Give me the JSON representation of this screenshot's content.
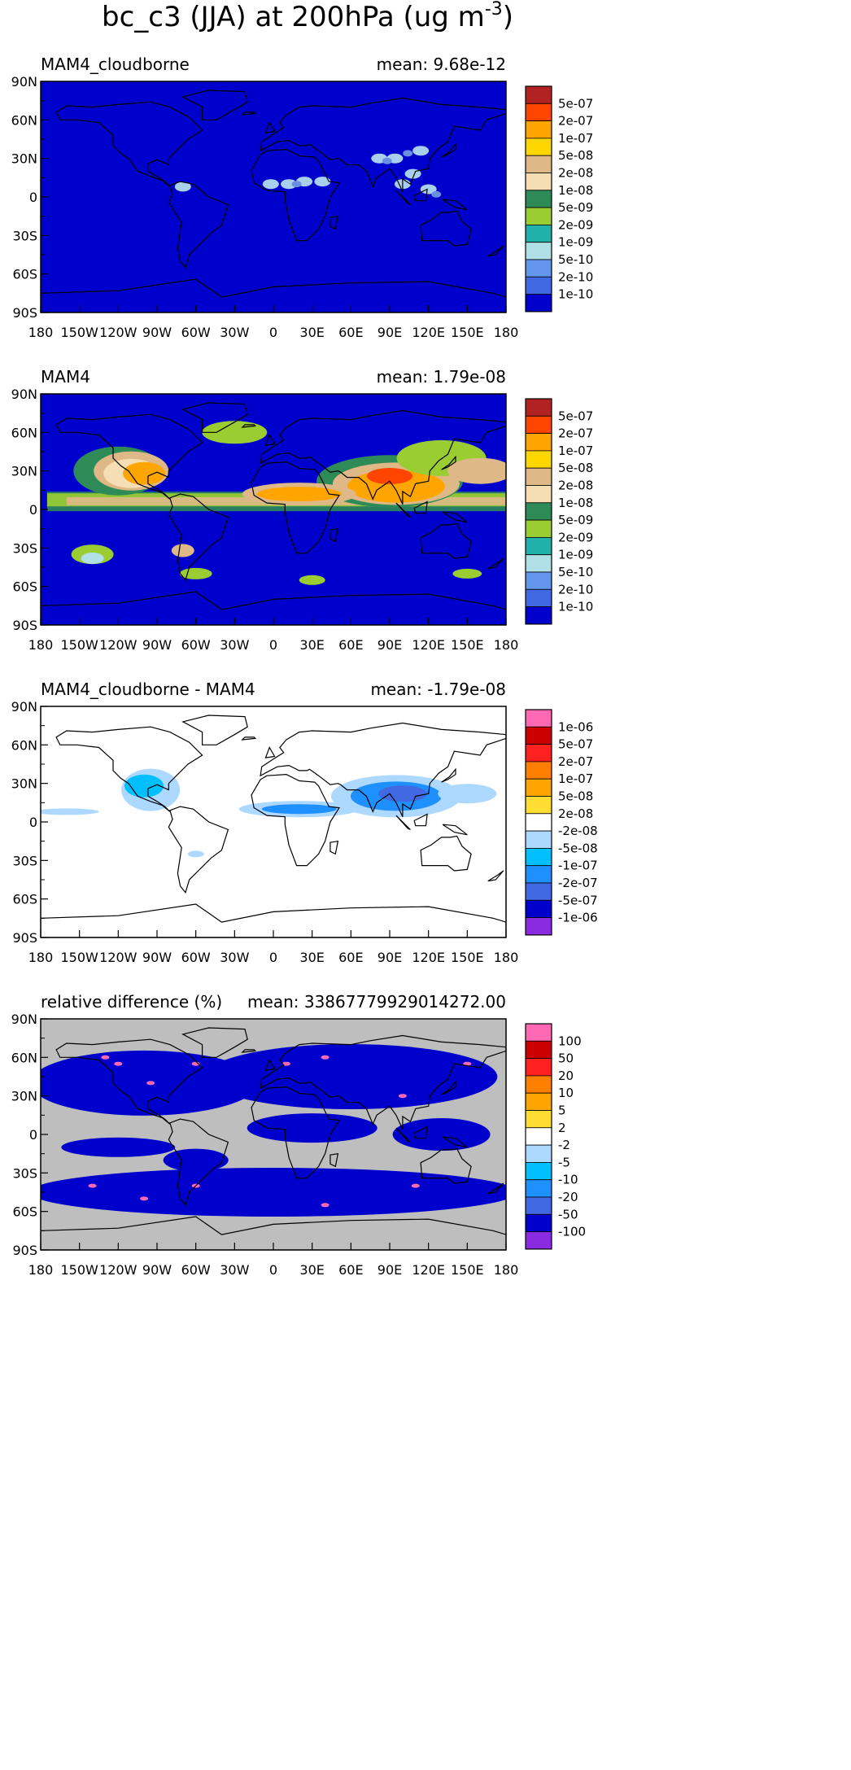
{
  "main_title": {
    "text": "bc_c3 (JJA) at 200hPa (ug m",
    "sup": "-3",
    "close": ")"
  },
  "x_ticks": [
    "180",
    "150W",
    "120W",
    "90W",
    "60W",
    "30W",
    "0",
    "30E",
    "60E",
    "90E",
    "120E",
    "150E",
    "180"
  ],
  "y_ticks": [
    "90N",
    "60N",
    "30N",
    "0",
    "30S",
    "60S",
    "90S"
  ],
  "panels": [
    {
      "left_title": "MAM4_cloudborne",
      "right_title": "mean: 9.68e-12",
      "colorbar": {
        "labels": [
          "5e-07",
          "2e-07",
          "1e-07",
          "5e-08",
          "2e-08",
          "1e-08",
          "5e-09",
          "2e-09",
          "1e-09",
          "5e-10",
          "2e-10",
          "1e-10"
        ],
        "colors": [
          "#b22222",
          "#ff4500",
          "#ffa500",
          "#ffd700",
          "#deb887",
          "#f5deb3",
          "#2e8b57",
          "#9acd32",
          "#20b2aa",
          "#b0e0e6",
          "#6495ed",
          "#4169e1",
          "#0000cd"
        ]
      }
    },
    {
      "left_title": "MAM4",
      "right_title": "mean: 1.79e-08",
      "colorbar": {
        "labels": [
          "5e-07",
          "2e-07",
          "1e-07",
          "5e-08",
          "2e-08",
          "1e-08",
          "5e-09",
          "2e-09",
          "1e-09",
          "5e-10",
          "2e-10",
          "1e-10"
        ],
        "colors": [
          "#b22222",
          "#ff4500",
          "#ffa500",
          "#ffd700",
          "#deb887",
          "#f5deb3",
          "#2e8b57",
          "#9acd32",
          "#20b2aa",
          "#b0e0e6",
          "#6495ed",
          "#4169e1",
          "#0000cd"
        ]
      }
    },
    {
      "left_title": "MAM4_cloudborne - MAM4",
      "right_title": "mean: -1.79e-08",
      "colorbar": {
        "labels": [
          "1e-06",
          "5e-07",
          "2e-07",
          "1e-07",
          "5e-08",
          "2e-08",
          "-2e-08",
          "-5e-08",
          "-1e-07",
          "-2e-07",
          "-5e-07",
          "-1e-06"
        ],
        "colors": [
          "#ff69b4",
          "#cc0000",
          "#ff2020",
          "#ff7f00",
          "#ffa500",
          "#ffdd33",
          "#ffffff",
          "#add8ff",
          "#00bfff",
          "#1e90ff",
          "#4169e1",
          "#0000cd",
          "#8a2be2"
        ]
      }
    },
    {
      "left_title": "relative difference (%)",
      "right_title": "mean: 33867779929014272.00",
      "colorbar": {
        "labels": [
          "100",
          "50",
          "20",
          "10",
          "5",
          "2",
          "-2",
          "-5",
          "-10",
          "-20",
          "-50",
          "-100"
        ],
        "colors": [
          "#ff69b4",
          "#cc0000",
          "#ff2020",
          "#ff7f00",
          "#ffa500",
          "#ffdd33",
          "#ffffff",
          "#add8ff",
          "#00bfff",
          "#1e90ff",
          "#4169e1",
          "#0000cd",
          "#8a2be2"
        ]
      }
    }
  ]
}
